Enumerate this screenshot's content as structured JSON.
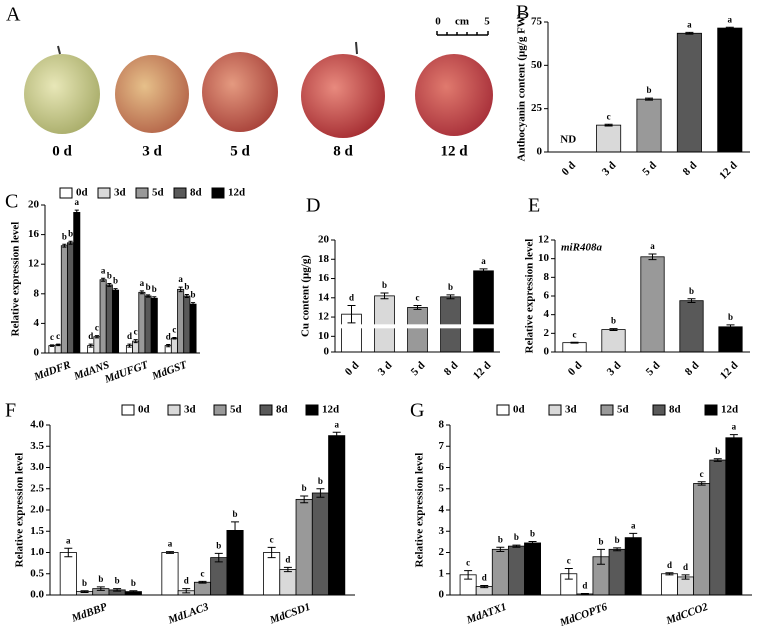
{
  "photo": {
    "panel": "A",
    "captions": [
      "0 d",
      "3 d",
      "5 d",
      "8 d",
      "12 d"
    ],
    "scale_bar": {
      "start": "0",
      "unit": "cm",
      "end": "5"
    }
  },
  "chart_data": [
    {
      "type": "bar",
      "panel": "B",
      "ylabel": "Anthocyanin content (μg/g FW)",
      "categories": [
        "0 d",
        "3 d",
        "5 d",
        "8 d",
        "12 d"
      ],
      "values": [
        null,
        15.5,
        30.5,
        68.5,
        71.5
      ],
      "errors": [
        null,
        0.5,
        0.6,
        0.5,
        0.5
      ],
      "significance": [
        null,
        "c",
        "b",
        "a",
        "a"
      ],
      "na_label": "ND",
      "colors": [
        "#ffffff",
        "#d9d9d9",
        "#999999",
        "#595959",
        "#000000"
      ],
      "ylim": [
        0,
        75
      ],
      "yticks": [
        0,
        25,
        50,
        75
      ]
    },
    {
      "type": "bar",
      "panel": "C",
      "ylabel": "Relative expression level",
      "categories": [
        "MdDFR",
        "MdANS",
        "MdUFGT",
        "MdGST"
      ],
      "ylim": [
        0,
        20
      ],
      "yticks": [
        0,
        4,
        8,
        12,
        16,
        20
      ],
      "series": [
        {
          "name": "0d",
          "color": "#ffffff",
          "values": [
            1.0,
            1.0,
            1.0,
            1.0
          ],
          "errors": [
            0.1,
            0.2,
            0.2,
            0.15
          ],
          "significance": [
            "c",
            "d",
            "d",
            "d"
          ]
        },
        {
          "name": "3d",
          "color": "#d9d9d9",
          "values": [
            1.1,
            2.2,
            1.6,
            2.0
          ],
          "errors": [
            0.1,
            0.15,
            0.2,
            0.1
          ],
          "significance": [
            "c",
            "c",
            "c",
            "c"
          ]
        },
        {
          "name": "5d",
          "color": "#999999",
          "values": [
            14.5,
            9.9,
            8.2,
            8.6
          ],
          "errors": [
            0.2,
            0.2,
            0.2,
            0.3
          ],
          "significance": [
            "b",
            "a",
            "a",
            "a"
          ]
        },
        {
          "name": "8d",
          "color": "#595959",
          "values": [
            14.9,
            9.2,
            7.7,
            7.7
          ],
          "errors": [
            0.2,
            0.2,
            0.15,
            0.2
          ],
          "significance": [
            "b",
            "b",
            "b",
            "b"
          ]
        },
        {
          "name": "12d",
          "color": "#000000",
          "values": [
            19.0,
            8.5,
            7.4,
            6.6
          ],
          "errors": [
            0.3,
            0.2,
            0.2,
            0.2
          ],
          "significance": [
            "a",
            "b",
            "b",
            "b"
          ]
        }
      ]
    },
    {
      "type": "bar",
      "panel": "D",
      "ylabel": "Cu content (μg/g)",
      "categories": [
        "0 d",
        "3 d",
        "5 d",
        "8 d",
        "12 d"
      ],
      "values": [
        12.3,
        14.2,
        13.0,
        14.1,
        16.8
      ],
      "errors": [
        0.9,
        0.3,
        0.2,
        0.2,
        0.2
      ],
      "significance": [
        "d",
        "b",
        "c",
        "b",
        "a"
      ],
      "colors": [
        "#ffffff",
        "#d9d9d9",
        "#999999",
        "#595959",
        "#000000"
      ],
      "ylim": [
        0,
        20
      ],
      "yticks": [
        0,
        10,
        12,
        14,
        16,
        18,
        20
      ],
      "axis_break": 10
    },
    {
      "type": "bar",
      "panel": "E",
      "ylabel": "Relative expression level",
      "annotation": "miR408a",
      "categories": [
        "0 d",
        "3 d",
        "5 d",
        "8 d",
        "12 d"
      ],
      "values": [
        1.0,
        2.4,
        10.2,
        5.5,
        2.7
      ],
      "errors": [
        0.05,
        0.1,
        0.3,
        0.2,
        0.2
      ],
      "significance": [
        "c",
        "b",
        "a",
        "b",
        "b"
      ],
      "colors": [
        "#ffffff",
        "#d9d9d9",
        "#999999",
        "#595959",
        "#000000"
      ],
      "ylim": [
        0,
        12
      ],
      "yticks": [
        0,
        2,
        4,
        6,
        8,
        10,
        12
      ]
    },
    {
      "type": "bar",
      "panel": "F",
      "ylabel": "Relative expression level",
      "categories": [
        "MdBBP",
        "MdLAC3",
        "MdCSD1"
      ],
      "ylim": [
        0,
        4
      ],
      "yticks": [
        {
          "value": 0,
          "label": "0.0"
        },
        0.5,
        {
          "value": 1,
          "label": "1.0"
        },
        1.5,
        {
          "value": 2,
          "label": "2.0"
        },
        2.5,
        {
          "value": 3,
          "label": "3.0"
        },
        3.5,
        {
          "value": 4,
          "label": "4.0"
        }
      ],
      "series": [
        {
          "name": "0d",
          "color": "#ffffff",
          "values": [
            1.0,
            1.0,
            1.0
          ],
          "errors": [
            0.1,
            0.02,
            0.12
          ],
          "significance": [
            "a",
            "a",
            "c"
          ]
        },
        {
          "name": "3d",
          "color": "#d9d9d9",
          "values": [
            0.08,
            0.1,
            0.6
          ],
          "errors": [
            0.02,
            0.05,
            0.05
          ],
          "significance": [
            "b",
            "d",
            "d"
          ]
        },
        {
          "name": "5d",
          "color": "#999999",
          "values": [
            0.15,
            0.3,
            2.25
          ],
          "errors": [
            0.04,
            0.02,
            0.08
          ],
          "significance": [
            "b",
            "c",
            "b"
          ]
        },
        {
          "name": "8d",
          "color": "#595959",
          "values": [
            0.12,
            0.88,
            2.4
          ],
          "errors": [
            0.03,
            0.1,
            0.1
          ],
          "significance": [
            "b",
            "b",
            "b"
          ]
        },
        {
          "name": "12d",
          "color": "#000000",
          "values": [
            0.08,
            1.52,
            3.75
          ],
          "errors": [
            0.02,
            0.2,
            0.08
          ],
          "significance": [
            "b",
            "b",
            "a"
          ]
        }
      ]
    },
    {
      "type": "bar",
      "panel": "G",
      "ylabel": "Relative expression level",
      "categories": [
        "MdATX1",
        "MdCOPT6",
        "MdCCO2"
      ],
      "ylim": [
        0,
        8
      ],
      "yticks": [
        0,
        1,
        2,
        3,
        4,
        5,
        6,
        7,
        8
      ],
      "series": [
        {
          "name": "0d",
          "color": "#ffffff",
          "values": [
            0.95,
            1.0,
            1.0
          ],
          "errors": [
            0.2,
            0.25,
            0.05
          ],
          "significance": [
            "c",
            "c",
            "d"
          ]
        },
        {
          "name": "3d",
          "color": "#d9d9d9",
          "values": [
            0.4,
            0.05,
            0.85
          ],
          "errors": [
            0.05,
            0.02,
            0.1
          ],
          "significance": [
            "d",
            "d",
            "d"
          ]
        },
        {
          "name": "5d",
          "color": "#999999",
          "values": [
            2.15,
            1.8,
            5.25
          ],
          "errors": [
            0.1,
            0.35,
            0.08
          ],
          "significance": [
            "b",
            "b",
            "c"
          ]
        },
        {
          "name": "8d",
          "color": "#595959",
          "values": [
            2.3,
            2.15,
            6.35
          ],
          "errors": [
            0.05,
            0.07,
            0.06
          ],
          "significance": [
            "b",
            "b",
            "b"
          ]
        },
        {
          "name": "12d",
          "color": "#000000",
          "values": [
            2.45,
            2.7,
            7.4
          ],
          "errors": [
            0.07,
            0.2,
            0.15
          ],
          "significance": [
            "b",
            "a",
            "a"
          ]
        }
      ]
    }
  ]
}
